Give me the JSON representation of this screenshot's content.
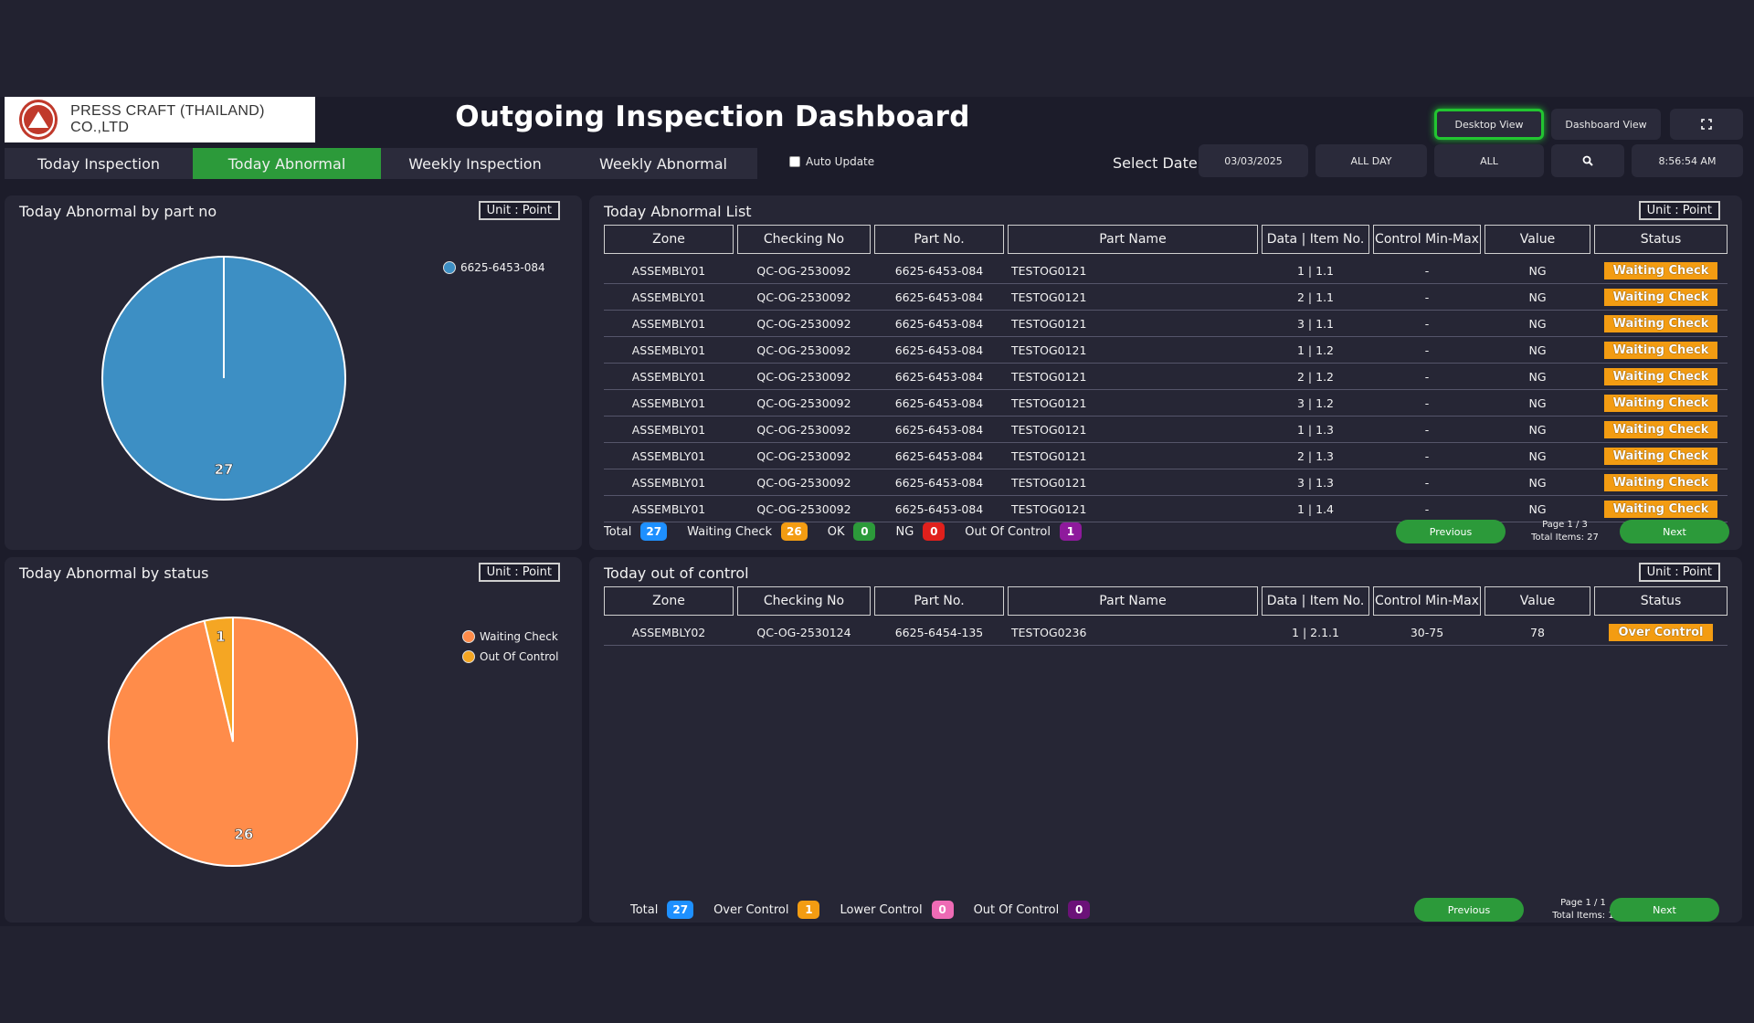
{
  "header": {
    "company": "PRESS CRAFT (THAILAND) CO.,LTD",
    "title": "Outgoing Inspection Dashboard",
    "desktop_view": "Desktop View",
    "dashboard_view": "Dashboard View",
    "fullscreen_icon": "fullscreen-icon"
  },
  "tabs": [
    {
      "label": "Today Inspection",
      "active": false
    },
    {
      "label": "Today Abnormal",
      "active": true
    },
    {
      "label": "Weekly Inspection",
      "active": false
    },
    {
      "label": "Weekly Abnormal",
      "active": false
    }
  ],
  "auto_update": {
    "label": "Auto Update",
    "checked": false
  },
  "filters": {
    "select_date_label": "Select Date",
    "date": "03/03/2025",
    "shift": "ALL DAY",
    "zone": "ALL",
    "search_icon": "search-icon",
    "clock": "8:56:54 AM"
  },
  "chart_data": [
    {
      "type": "pie",
      "title": "Today Abnormal by part no",
      "unit": "Unit : Point",
      "labels": [
        "6625-6453-084"
      ],
      "values": [
        27
      ],
      "colors": [
        "#3d8fc4"
      ]
    },
    {
      "type": "pie",
      "title": "Today Abnormal by status",
      "unit": "Unit : Point",
      "labels": [
        "Waiting Check",
        "Out Of Control"
      ],
      "values": [
        26,
        1
      ],
      "colors": [
        "#ff8c4a",
        "#f5a623"
      ]
    }
  ],
  "abnormal_list": {
    "title": "Today Abnormal List",
    "unit": "Unit : Point",
    "columns": [
      "Zone",
      "Checking No",
      "Part No.",
      "Part Name",
      "Data | Item No.",
      "Control Min-Max",
      "Value",
      "Status"
    ],
    "rows": [
      [
        "ASSEMBLY01",
        "QC-OG-2530092",
        "6625-6453-084",
        "TESTOG0121",
        "1 | 1.1",
        "-",
        "NG",
        "Waiting Check"
      ],
      [
        "ASSEMBLY01",
        "QC-OG-2530092",
        "6625-6453-084",
        "TESTOG0121",
        "2 | 1.1",
        "-",
        "NG",
        "Waiting Check"
      ],
      [
        "ASSEMBLY01",
        "QC-OG-2530092",
        "6625-6453-084",
        "TESTOG0121",
        "3 | 1.1",
        "-",
        "NG",
        "Waiting Check"
      ],
      [
        "ASSEMBLY01",
        "QC-OG-2530092",
        "6625-6453-084",
        "TESTOG0121",
        "1 | 1.2",
        "-",
        "NG",
        "Waiting Check"
      ],
      [
        "ASSEMBLY01",
        "QC-OG-2530092",
        "6625-6453-084",
        "TESTOG0121",
        "2 | 1.2",
        "-",
        "NG",
        "Waiting Check"
      ],
      [
        "ASSEMBLY01",
        "QC-OG-2530092",
        "6625-6453-084",
        "TESTOG0121",
        "3 | 1.2",
        "-",
        "NG",
        "Waiting Check"
      ],
      [
        "ASSEMBLY01",
        "QC-OG-2530092",
        "6625-6453-084",
        "TESTOG0121",
        "1 | 1.3",
        "-",
        "NG",
        "Waiting Check"
      ],
      [
        "ASSEMBLY01",
        "QC-OG-2530092",
        "6625-6453-084",
        "TESTOG0121",
        "2 | 1.3",
        "-",
        "NG",
        "Waiting Check"
      ],
      [
        "ASSEMBLY01",
        "QC-OG-2530092",
        "6625-6453-084",
        "TESTOG0121",
        "3 | 1.3",
        "-",
        "NG",
        "Waiting Check"
      ],
      [
        "ASSEMBLY01",
        "QC-OG-2530092",
        "6625-6453-084",
        "TESTOG0121",
        "1 | 1.4",
        "-",
        "NG",
        "Waiting Check"
      ]
    ],
    "footer": [
      {
        "label": "Total",
        "value": "27",
        "color": "#1e90ff"
      },
      {
        "label": "Waiting Check",
        "value": "26",
        "color": "#f39c12"
      },
      {
        "label": "OK",
        "value": "0",
        "color": "#2c9a3a"
      },
      {
        "label": "NG",
        "value": "0",
        "color": "#e0201c"
      },
      {
        "label": "Out Of Control",
        "value": "1",
        "color": "#8e1a9c"
      }
    ],
    "prev": "Previous",
    "next": "Next",
    "page": "Page 1 / 3",
    "total_items": "Total Items: 27"
  },
  "out_of_control": {
    "title": "Today out of control",
    "unit": "Unit : Point",
    "columns": [
      "Zone",
      "Checking No",
      "Part No.",
      "Part Name",
      "Data | Item No.",
      "Control Min-Max",
      "Value",
      "Status"
    ],
    "rows": [
      [
        "ASSEMBLY02",
        "QC-OG-2530124",
        "6625-6454-135",
        "TESTOG0236",
        "1 | 2.1.1",
        "30-75",
        "78",
        "Over Control"
      ]
    ],
    "footer": [
      {
        "label": "Total",
        "value": "27",
        "color": "#1e90ff"
      },
      {
        "label": "Over Control",
        "value": "1",
        "color": "#f39c12"
      },
      {
        "label": "Lower Control",
        "value": "0",
        "color": "#ee6bb5"
      },
      {
        "label": "Out Of Control",
        "value": "0",
        "color": "#6b1278"
      }
    ],
    "prev": "Previous",
    "next": "Next",
    "page": "Page 1 / 1",
    "total_items": "Total Items: 1"
  }
}
